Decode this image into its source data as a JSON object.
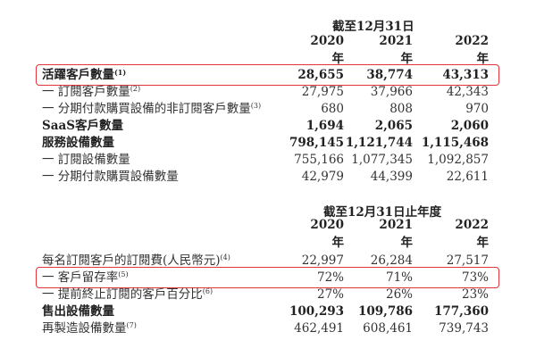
{
  "table1": {
    "header": "截至12月31日",
    "years": [
      "2020年",
      "2021年",
      "2022年"
    ],
    "rows": [
      {
        "label": "活躍客戶數量",
        "note": "(1)",
        "values": [
          "28,655",
          "38,774",
          "43,313"
        ],
        "bold": true,
        "highlighted": true
      },
      {
        "label": "一 訂閱客戶數量",
        "note": "(2)",
        "values": [
          "27,975",
          "37,966",
          "42,343"
        ]
      },
      {
        "label": "一 分期付款購買設備的非訂閱客戶數量",
        "note": "(3)",
        "values": [
          "680",
          "808",
          "970"
        ]
      },
      {
        "label": "SaaS客戶數量",
        "note": "",
        "values": [
          "1,694",
          "2,065",
          "2,060"
        ],
        "bold": true
      },
      {
        "label": "服務設備數量",
        "note": "",
        "values": [
          "798,145",
          "1,121,744",
          "1,115,468"
        ],
        "bold": true
      },
      {
        "label": "一 訂閱設備數量",
        "note": "",
        "values": [
          "755,166",
          "1,077,345",
          "1,092,857"
        ]
      },
      {
        "label": "一 分期付款購買設備數量",
        "note": "",
        "values": [
          "42,979",
          "44,399",
          "22,611"
        ]
      }
    ]
  },
  "table2": {
    "header": "截至12月31日止年度",
    "years": [
      "2020年",
      "2021年",
      "2022年"
    ],
    "rows": [
      {
        "label": "每名訂閱客戶的訂閱費(人民幣元)",
        "note": "(4)",
        "values": [
          "22,997",
          "26,284",
          "27,517"
        ]
      },
      {
        "label": "一 客戶留存率",
        "note": "(5)",
        "values": [
          "72%",
          "71%",
          "73%"
        ],
        "highlighted": true
      },
      {
        "label": "一 提前終止訂閱的客戶百分比",
        "note": "(6)",
        "values": [
          "27%",
          "26%",
          "23%"
        ]
      },
      {
        "label": "售出設備數量",
        "note": "",
        "values": [
          "100,293",
          "109,786",
          "177,360"
        ],
        "bold": true
      },
      {
        "label": "再製造設備數量",
        "note": "(7)",
        "values": [
          "462,491",
          "608,461",
          "739,743"
        ]
      }
    ]
  },
  "colors": {
    "highlight_border": "#e0353b"
  }
}
